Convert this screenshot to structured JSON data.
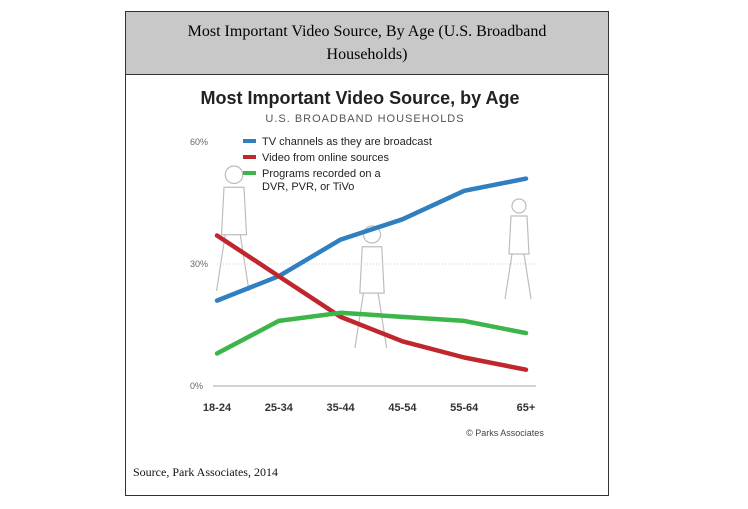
{
  "page": {
    "caption": "Most Important Video Source, By Age (U.S. Broadband Households)",
    "source_note": "Source, Park Associates, 2014"
  },
  "chart_data": {
    "type": "line",
    "title": "Most Important Video Source, by Age",
    "subtitle": "U.S. BROADBAND HOUSEHOLDS",
    "credit": "© Parks Associates",
    "categories": [
      "18-24",
      "25-34",
      "35-44",
      "45-54",
      "55-64",
      "65+"
    ],
    "y_ticks": [
      "0%",
      "30%",
      "60%"
    ],
    "ylim": [
      0,
      60
    ],
    "grid": true,
    "legend_position": "top",
    "series": [
      {
        "name": "TV channels as they are broadcast",
        "color": "#2f7fc1",
        "values": [
          21,
          27,
          36,
          41,
          48,
          51
        ]
      },
      {
        "name": "Video from online sources",
        "color": "#c0262d",
        "values": [
          37,
          27,
          17,
          11,
          7,
          4
        ]
      },
      {
        "name": "Programs recorded on a DVR, PVR, or TiVo",
        "name_lines": [
          "Programs recorded on a",
          "DVR, PVR, or TiVo"
        ],
        "color": "#3cb54a",
        "values": [
          8,
          16,
          18,
          17,
          16,
          13
        ]
      }
    ]
  }
}
